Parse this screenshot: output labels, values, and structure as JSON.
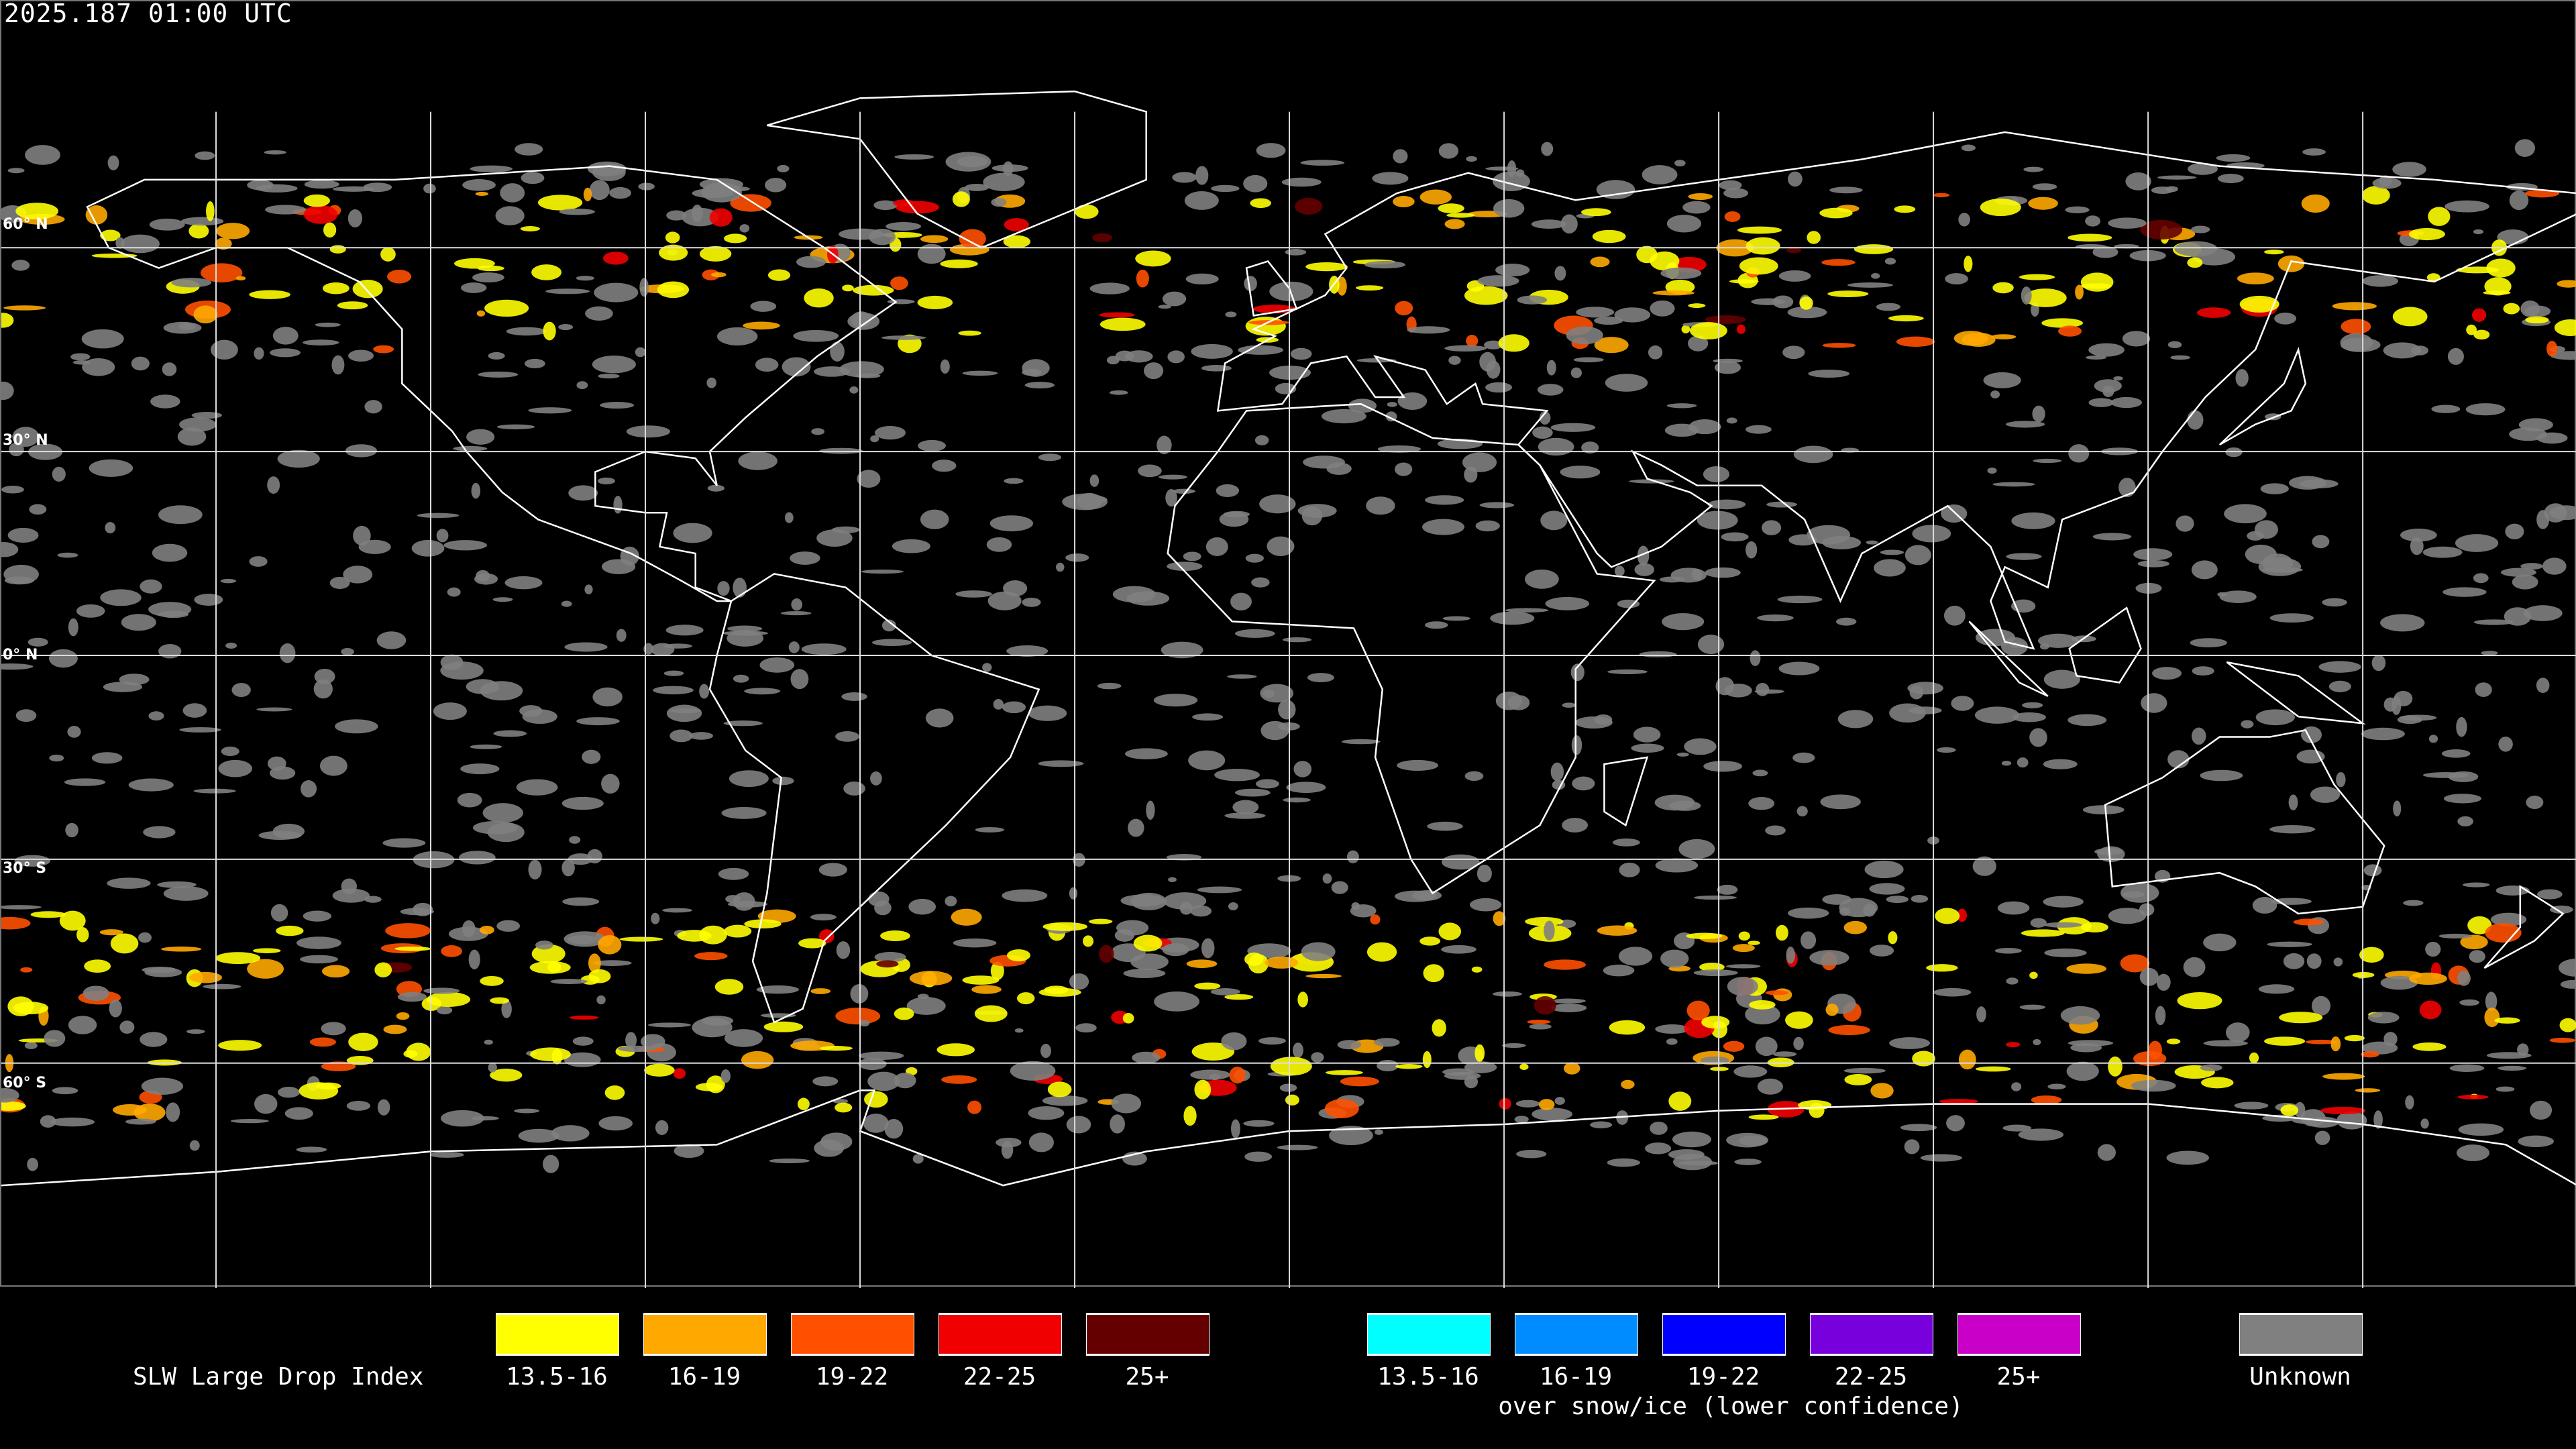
{
  "timestamp": "2025.187 01:00 UTC",
  "lat_labels": [
    "60° N",
    "30° N",
    "0° N",
    "30° S",
    "60° S"
  ],
  "legend": {
    "title": "SLW Large Drop Index",
    "categories": [
      {
        "label": "13.5-16",
        "color": "#ffff00"
      },
      {
        "label": "16-19",
        "color": "#ffa800"
      },
      {
        "label": "19-22",
        "color": "#ff5000"
      },
      {
        "label": "22-25",
        "color": "#f00000"
      },
      {
        "label": "25+",
        "color": "#640000"
      }
    ],
    "snow_categories": [
      {
        "label": "13.5-16",
        "color": "#00ffff"
      },
      {
        "label": "16-19",
        "color": "#008cff"
      },
      {
        "label": "19-22",
        "color": "#0000ff"
      },
      {
        "label": "22-25",
        "color": "#7800dc"
      },
      {
        "label": "25+",
        "color": "#c800c8"
      }
    ],
    "snow_note": "over snow/ice (lower confidence)",
    "unknown": {
      "label": "Unknown",
      "color": "#808080"
    }
  }
}
